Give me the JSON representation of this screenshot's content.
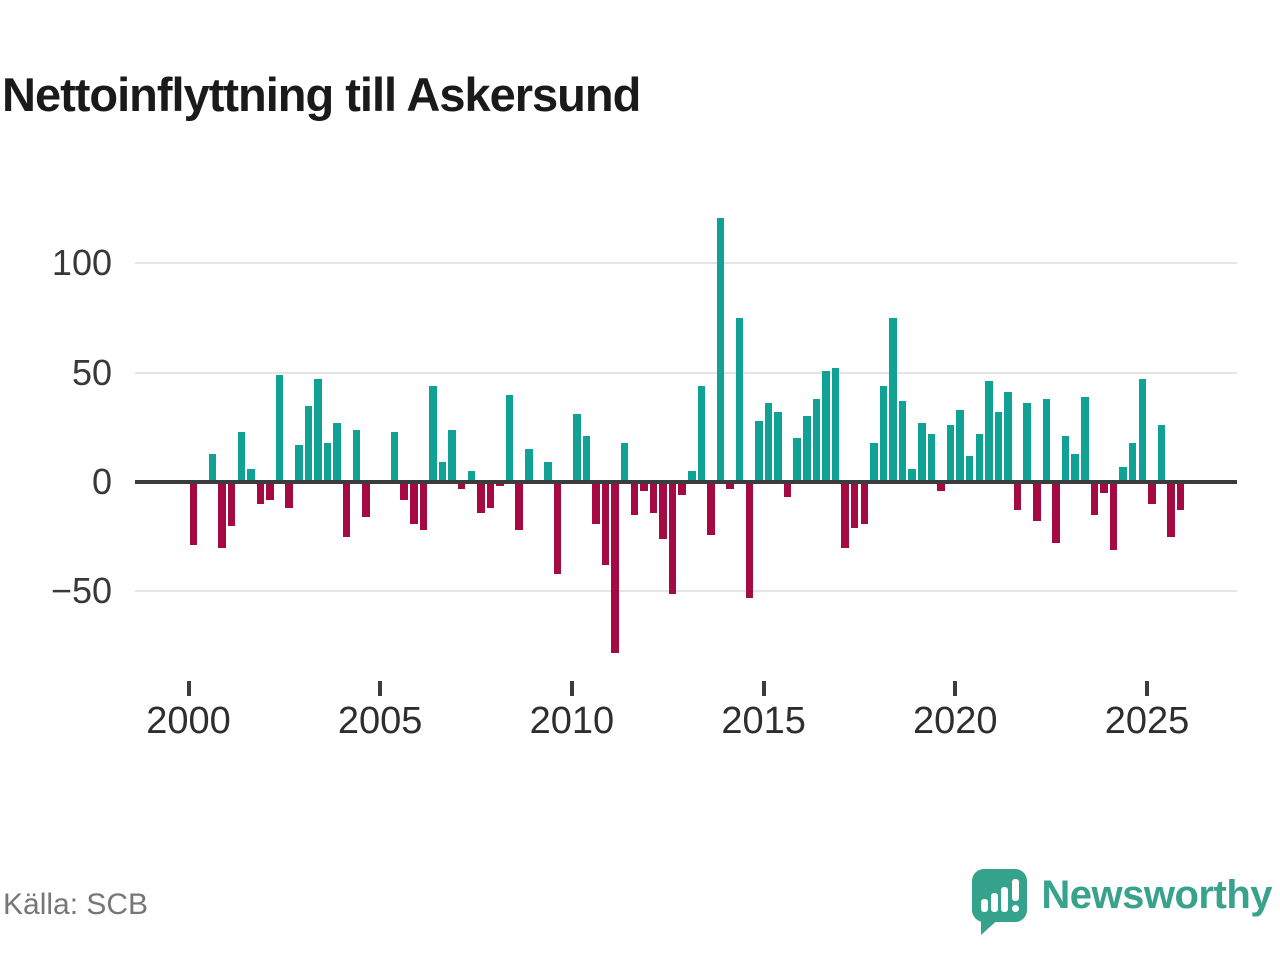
{
  "title": "Nettoinflyttning till Askersund",
  "source": "Källa: SCB",
  "brand": {
    "name": "Newsworthy"
  },
  "colors": {
    "positive": "#10a294",
    "negative": "#a50b42",
    "grid": "#e4e4e4",
    "axis": "#3c3c3c",
    "brand": "#38a28c"
  },
  "chart_data": {
    "type": "bar",
    "title": "Nettoinflyttning till Askersund",
    "xlabel": "",
    "ylabel": "",
    "x_unit": "quarter",
    "start_year": 2000,
    "end_year": 2025,
    "yticks": [
      100,
      50,
      0,
      -50
    ],
    "xticks": [
      2000,
      2005,
      2010,
      2015,
      2020,
      2025
    ],
    "ylim": [
      -85,
      135
    ],
    "grid": true,
    "legend": "none",
    "series": [
      {
        "year": 2000,
        "quarters": [
          -29,
          1,
          13,
          -30
        ]
      },
      {
        "year": 2001,
        "quarters": [
          -20,
          23,
          6,
          -10
        ]
      },
      {
        "year": 2002,
        "quarters": [
          -8,
          49,
          -12,
          17
        ]
      },
      {
        "year": 2003,
        "quarters": [
          35,
          47,
          18,
          27
        ]
      },
      {
        "year": 2004,
        "quarters": [
          -25,
          24,
          -16,
          0
        ]
      },
      {
        "year": 2005,
        "quarters": [
          0,
          23,
          -8,
          -19
        ]
      },
      {
        "year": 2006,
        "quarters": [
          -22,
          44,
          9,
          24
        ]
      },
      {
        "year": 2007,
        "quarters": [
          -3,
          5,
          -14,
          -12
        ]
      },
      {
        "year": 2008,
        "quarters": [
          -2,
          40,
          -22,
          15
        ]
      },
      {
        "year": 2009,
        "quarters": [
          0,
          9,
          -42,
          0
        ]
      },
      {
        "year": 2010,
        "quarters": [
          31,
          21,
          -19,
          -38
        ]
      },
      {
        "year": 2011,
        "quarters": [
          -78,
          18,
          -15,
          -4
        ]
      },
      {
        "year": 2012,
        "quarters": [
          -14,
          -26,
          -51,
          -6
        ]
      },
      {
        "year": 2013,
        "quarters": [
          5,
          44,
          -24,
          121
        ]
      },
      {
        "year": 2014,
        "quarters": [
          -3,
          75,
          -53,
          28
        ]
      },
      {
        "year": 2015,
        "quarters": [
          36,
          32,
          -7,
          20
        ]
      },
      {
        "year": 2016,
        "quarters": [
          30,
          38,
          51,
          52
        ]
      },
      {
        "year": 2017,
        "quarters": [
          -30,
          -21,
          -19,
          18
        ]
      },
      {
        "year": 2018,
        "quarters": [
          44,
          75,
          37,
          6
        ]
      },
      {
        "year": 2019,
        "quarters": [
          27,
          22,
          -4,
          26
        ]
      },
      {
        "year": 2020,
        "quarters": [
          33,
          12,
          22,
          46
        ]
      },
      {
        "year": 2021,
        "quarters": [
          32,
          41,
          -13,
          36
        ]
      },
      {
        "year": 2022,
        "quarters": [
          -18,
          38,
          -28,
          21
        ]
      },
      {
        "year": 2023,
        "quarters": [
          13,
          39,
          -15,
          -5
        ]
      },
      {
        "year": 2024,
        "quarters": [
          -31,
          7,
          18,
          47
        ]
      },
      {
        "year": 2025,
        "quarters": [
          -10,
          26,
          -25,
          -13
        ]
      }
    ]
  }
}
